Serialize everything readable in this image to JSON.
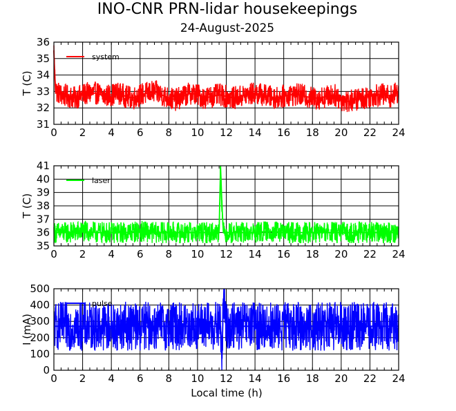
{
  "title": "INO-CNR PRN-lidar housekeepings",
  "subtitle": "24-August-2025",
  "xlabel": "Local time (h)",
  "colors": {
    "system": "#ff0000",
    "laser": "#00ff00",
    "pulse": "#0000ff",
    "grid": "#000000"
  },
  "chart_data": [
    {
      "type": "line",
      "name": "system-temperature",
      "ylabel": "T (C)",
      "xlim": [
        0,
        24
      ],
      "ylim": [
        31,
        36
      ],
      "xticks": [
        0,
        2,
        4,
        6,
        8,
        10,
        12,
        14,
        16,
        18,
        20,
        22,
        24
      ],
      "yticks": [
        31,
        32,
        33,
        34,
        35,
        36
      ],
      "grid": true,
      "legend_position": "top-left",
      "series": [
        {
          "name": "system",
          "color": "#ff0000",
          "x": [
            0,
            0.05,
            0.1,
            0.2,
            0.5,
            1,
            1.5,
            2,
            2.5,
            3,
            3.5,
            4,
            4.5,
            5,
            5.5,
            6,
            6.5,
            7,
            7.5,
            8,
            8.5,
            9,
            9.5,
            10,
            10.5,
            11,
            11.5,
            12,
            12.5,
            13,
            13.5,
            14,
            14.5,
            15,
            15.5,
            16,
            16.5,
            17,
            17.5,
            18,
            18.5,
            19,
            19.5,
            20,
            20.5,
            21,
            21.5,
            22,
            22.5,
            23,
            23.5,
            24
          ],
          "y": [
            35.5,
            34.2,
            33.4,
            33,
            32.8,
            32.7,
            32.6,
            32.8,
            32.9,
            32.9,
            32.7,
            32.8,
            32.9,
            32.7,
            32.6,
            32.8,
            32.9,
            33,
            32.8,
            32.6,
            32.5,
            32.7,
            32.9,
            32.8,
            32.6,
            32.7,
            32.8,
            32.7,
            32.6,
            32.7,
            32.8,
            32.9,
            32.8,
            32.7,
            32.6,
            32.7,
            32.8,
            32.8,
            32.7,
            32.6,
            32.6,
            32.7,
            32.8,
            32.5,
            32.4,
            32.5,
            32.6,
            32.7,
            32.8,
            32.8,
            32.7,
            33
          ],
          "noise": 0.7
        }
      ]
    },
    {
      "type": "line",
      "name": "laser-temperature",
      "ylabel": "T (C)",
      "xlim": [
        0,
        24
      ],
      "ylim": [
        35,
        41
      ],
      "xticks": [
        0,
        2,
        4,
        6,
        8,
        10,
        12,
        14,
        16,
        18,
        20,
        22,
        24
      ],
      "yticks": [
        35,
        36,
        37,
        38,
        39,
        40,
        41
      ],
      "grid": true,
      "legend_position": "top-left",
      "series": [
        {
          "name": "laser",
          "color": "#00ff00",
          "x": [
            0,
            1,
            2,
            3,
            4,
            5,
            6,
            7,
            8,
            9,
            10,
            11,
            11.5,
            11.6,
            11.7,
            11.8,
            12,
            13,
            14,
            15,
            16,
            17,
            18,
            19,
            20,
            21,
            22,
            23,
            24
          ],
          "y": [
            36,
            36,
            36.1,
            36,
            36,
            36,
            36.1,
            36,
            36,
            36,
            36,
            36,
            36,
            41,
            38,
            36,
            36,
            36,
            36,
            36.1,
            36,
            36,
            36,
            36,
            36,
            36,
            36,
            36,
            36
          ],
          "noise": 0.8
        }
      ]
    },
    {
      "type": "line",
      "name": "pulse-current",
      "ylabel": "I (mA)",
      "xlim": [
        0,
        24
      ],
      "ylim": [
        0,
        500
      ],
      "xticks": [
        0,
        2,
        4,
        6,
        8,
        10,
        12,
        14,
        16,
        18,
        20,
        22,
        24
      ],
      "yticks": [
        0,
        100,
        200,
        300,
        400,
        500
      ],
      "grid": true,
      "legend_position": "top-left",
      "series": [
        {
          "name": "pulse",
          "color": "#0000ff",
          "x": [
            0,
            2,
            4,
            6,
            8,
            10,
            11.6,
            11.7,
            11.8,
            12,
            14,
            16,
            18,
            20,
            22,
            24
          ],
          "y": [
            270,
            270,
            270,
            270,
            270,
            270,
            270,
            70,
            440,
            270,
            270,
            270,
            270,
            270,
            270,
            270
          ],
          "noise": 150
        }
      ]
    }
  ]
}
